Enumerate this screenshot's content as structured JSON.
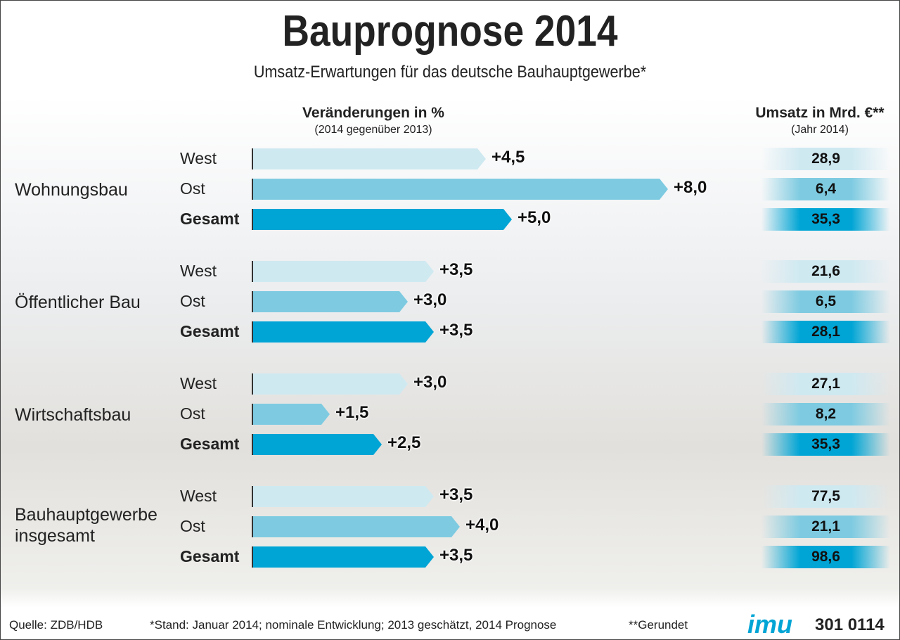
{
  "chart_data": {
    "type": "bar",
    "title": "Bauprognose 2014",
    "subtitle": "Umsatz-Erwartungen für das deutsche Bauhauptgewerbe*",
    "change_header": "Veränderungen in %",
    "change_subheader": "(2014 gegenüber 2013)",
    "total_header": "Umsatz in Mrd. €**",
    "total_subheader": "(Jahr 2014)",
    "categories": [
      "Wohnungsbau",
      "Öffentlicher Bau",
      "Wirtschaftsbau",
      "Bauhauptgewerbe insgesamt"
    ],
    "series": [
      {
        "name": "West",
        "color": "#cfe9f1",
        "values": [
          4.5,
          3.5,
          3.0,
          3.5
        ],
        "value_labels": [
          "+4,5",
          "+3,5",
          "+3,0",
          "+3,5"
        ],
        "totals": [
          28.9,
          21.6,
          27.1,
          77.5
        ],
        "total_labels": [
          "28,9",
          "21,6",
          "27,1",
          "77,5"
        ]
      },
      {
        "name": "Ost",
        "color": "#7ecbe1",
        "values": [
          8.0,
          3.0,
          1.5,
          4.0
        ],
        "value_labels": [
          "+8,0",
          "+3,0",
          "+1,5",
          "+4,0"
        ],
        "totals": [
          6.4,
          6.5,
          8.2,
          21.1
        ],
        "total_labels": [
          "6,4",
          "6,5",
          "8,2",
          "21,1"
        ]
      },
      {
        "name": "Gesamt",
        "color": "#00a5d5",
        "values": [
          5.0,
          3.5,
          2.5,
          3.5
        ],
        "value_labels": [
          "+5,0",
          "+3,5",
          "+2,5",
          "+3,5"
        ],
        "totals": [
          35.3,
          28.1,
          35.3,
          98.6
        ],
        "total_labels": [
          "35,3",
          "28,1",
          "35,3",
          "98,6"
        ]
      }
    ],
    "source": "Quelle: ZDB/HDB",
    "footnote": "*Stand: Januar 2014; nominale Entwicklung; 2013 geschätzt, 2014 Prognose",
    "footnote2": "**Gerundet",
    "logo": "imu",
    "code": "301 0114"
  }
}
